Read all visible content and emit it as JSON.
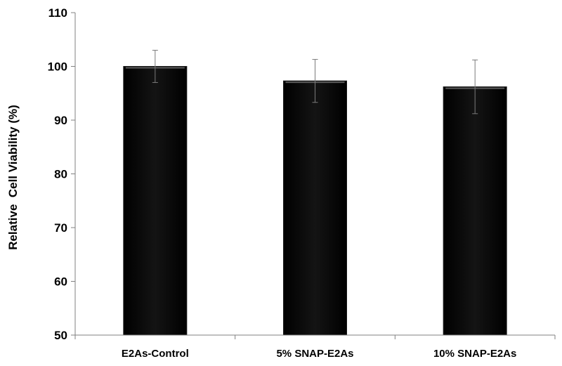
{
  "chart_data": {
    "type": "bar",
    "title": "",
    "xlabel": "",
    "ylabel": "Relative  Cell Viability (%)",
    "categories": [
      "E2As-Control",
      "5% SNAP-E2As",
      "10% SNAP-E2As"
    ],
    "values": [
      100,
      97.3,
      96.2
    ],
    "error": [
      3,
      4,
      5
    ],
    "ylim": [
      50,
      110
    ],
    "yticks": [
      50,
      60,
      70,
      80,
      90,
      100,
      110
    ],
    "grid": false,
    "legend": "none",
    "bar_color": "#0b0b0b"
  }
}
